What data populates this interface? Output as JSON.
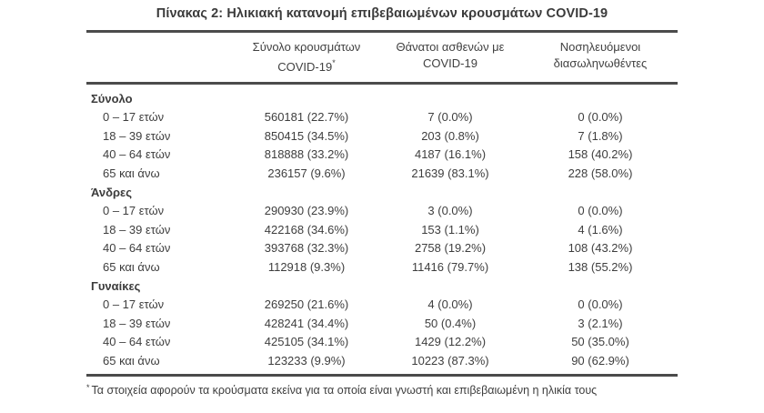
{
  "title": "Πίνακας 2: Ηλικιακή κατανομή επιβεβαιωμένων κρουσμάτων COVID-19",
  "table": {
    "columns": [
      {
        "line1": "Σύνολο κρουσμάτων",
        "line2": "COVID-19",
        "marker": "*"
      },
      {
        "line1": "Θάνατοι ασθενών με",
        "line2": "COVID-19"
      },
      {
        "line1": "Νοσηλευόμενοι",
        "line2": "διασωληνωθέντες"
      }
    ],
    "sections": [
      {
        "label": "Σύνολο",
        "rows": [
          {
            "age": "0 – 17 ετών",
            "cases": "560181 (22.7%)",
            "deaths": "7 (0.0%)",
            "intubated": "0 (0.0%)"
          },
          {
            "age": "18 – 39 ετών",
            "cases": "850415 (34.5%)",
            "deaths": "203 (0.8%)",
            "intubated": "7 (1.8%)"
          },
          {
            "age": "40 – 64 ετών",
            "cases": "818888 (33.2%)",
            "deaths": "4187 (16.1%)",
            "intubated": "158 (40.2%)"
          },
          {
            "age": "65 και άνω",
            "cases": "236157 (9.6%)",
            "deaths": "21639 (83.1%)",
            "intubated": "228 (58.0%)"
          }
        ]
      },
      {
        "label": "Άνδρες",
        "rows": [
          {
            "age": "0 – 17 ετών",
            "cases": "290930 (23.9%)",
            "deaths": "3 (0.0%)",
            "intubated": "0 (0.0%)"
          },
          {
            "age": "18 – 39 ετών",
            "cases": "422168 (34.6%)",
            "deaths": "153 (1.1%)",
            "intubated": "4 (1.6%)"
          },
          {
            "age": "40 – 64 ετών",
            "cases": "393768 (32.3%)",
            "deaths": "2758 (19.2%)",
            "intubated": "108 (43.2%)"
          },
          {
            "age": "65 και άνω",
            "cases": "112918 (9.3%)",
            "deaths": "11416 (79.7%)",
            "intubated": "138 (55.2%)"
          }
        ]
      },
      {
        "label": "Γυναίκες",
        "rows": [
          {
            "age": "0 – 17 ετών",
            "cases": "269250 (21.6%)",
            "deaths": "4 (0.0%)",
            "intubated": "0 (0.0%)"
          },
          {
            "age": "18 – 39 ετών",
            "cases": "428241 (34.4%)",
            "deaths": "50 (0.4%)",
            "intubated": "3 (2.1%)"
          },
          {
            "age": "40 – 64 ετών",
            "cases": "425105 (34.1%)",
            "deaths": "1429 (12.2%)",
            "intubated": "50 (35.0%)"
          },
          {
            "age": "65 και άνω",
            "cases": "123233 (9.9%)",
            "deaths": "10223 (87.3%)",
            "intubated": "90 (62.9%)"
          }
        ]
      }
    ],
    "footnote_marker": "*",
    "footnote": "Τα στοιχεία αφορούν τα κρούσματα εκείνα για τα οποία είναι γνωστή και επιβεβαιωμένη η ηλικία τους"
  },
  "colors": {
    "text": "#3e3e3e",
    "border": "#4b4b4b",
    "background": "#ffffff"
  }
}
